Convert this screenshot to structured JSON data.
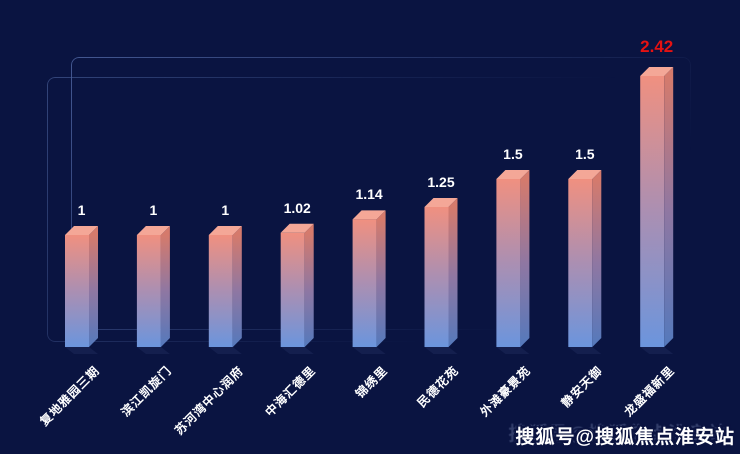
{
  "chart_data": {
    "type": "bar",
    "categories": [
      "复地雅园三期",
      "滨江凯旋门",
      "苏河湾中心润府",
      "中海汇德里",
      "锦绣里",
      "民德花苑",
      "外滩豪景苑",
      "静安天御",
      "龙盛福新里"
    ],
    "values": [
      1,
      1,
      1,
      1.02,
      1.14,
      1.25,
      1.5,
      1.5,
      2.42
    ],
    "title": "",
    "xlabel": "",
    "ylabel": "",
    "ylim": [
      0,
      2.42
    ],
    "grid": false,
    "legend": false,
    "style": "3d-column",
    "highlight_index": 8,
    "highlight_color": "#e51212",
    "value_label_color": "#ffffff",
    "category_label_color": "#ffffff",
    "background_color": "#0a1441",
    "bar_front_gradient": {
      "top": "#f09080",
      "mid": "#ab8fb2",
      "bottom": "#6b95dd"
    },
    "bar_side_gradient": {
      "top": "#d57a6c",
      "mid": "#8f77a2",
      "bottom": "#5479bc"
    },
    "bar_top_face_color": "#f4a797",
    "bar_base_shadow_color": "#141f4e"
  },
  "decor": {
    "frame_line_color": "#4a5f9a"
  },
  "watermark": {
    "text": "搜狐号@搜狐焦点淮安站"
  }
}
